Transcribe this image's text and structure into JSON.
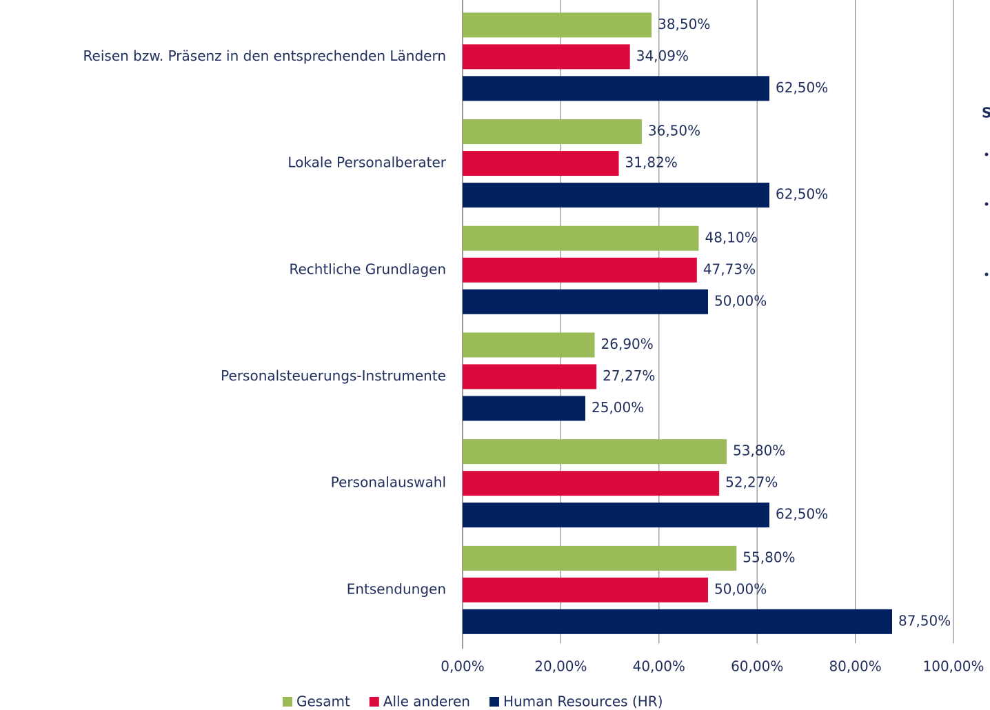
{
  "chart_data": {
    "type": "barh",
    "categories": [
      "Reisen bzw. Präsenz  in den entsprechenden Ländern",
      "Lokale Personalberater",
      "Rechtliche Grundlagen",
      "Personalsteuerungs-Instrumente",
      "Personalauswahl",
      "Entsendungen"
    ],
    "series": [
      {
        "name": "Gesamt",
        "color": "#9bbb59",
        "values": [
          38.5,
          36.5,
          48.1,
          26.9,
          53.8,
          55.8
        ],
        "value_labels": [
          "38,50%",
          "36,50%",
          "48,10%",
          "26,90%",
          "53,80%",
          "55,80%"
        ]
      },
      {
        "name": "Alle anderen",
        "color": "#dc0a3c",
        "values": [
          34.09,
          31.82,
          47.73,
          27.27,
          52.27,
          50.0
        ],
        "value_labels": [
          "34,09%",
          "31,82%",
          "47,73%",
          "27,27%",
          "52,27%",
          "50,00%"
        ]
      },
      {
        "name": "Human Resources (HR)",
        "color": "#002060",
        "values": [
          62.5,
          62.5,
          50.0,
          25.0,
          62.5,
          87.5
        ],
        "value_labels": [
          "62,50%",
          "62,50%",
          "50,00%",
          "25,00%",
          "62,50%",
          "87,50%"
        ]
      }
    ],
    "xlim": [
      0,
      100
    ],
    "xticks": [
      {
        "value": 0,
        "label": "0,00%"
      },
      {
        "value": 20,
        "label": "20,00%"
      },
      {
        "value": 40,
        "label": "40,00%"
      },
      {
        "value": 60,
        "label": "60,00%"
      },
      {
        "value": 80,
        "label": "80,00%"
      },
      {
        "value": 100,
        "label": "100,00%"
      }
    ],
    "grid": true,
    "legend": "bottom",
    "side_text": "S"
  }
}
